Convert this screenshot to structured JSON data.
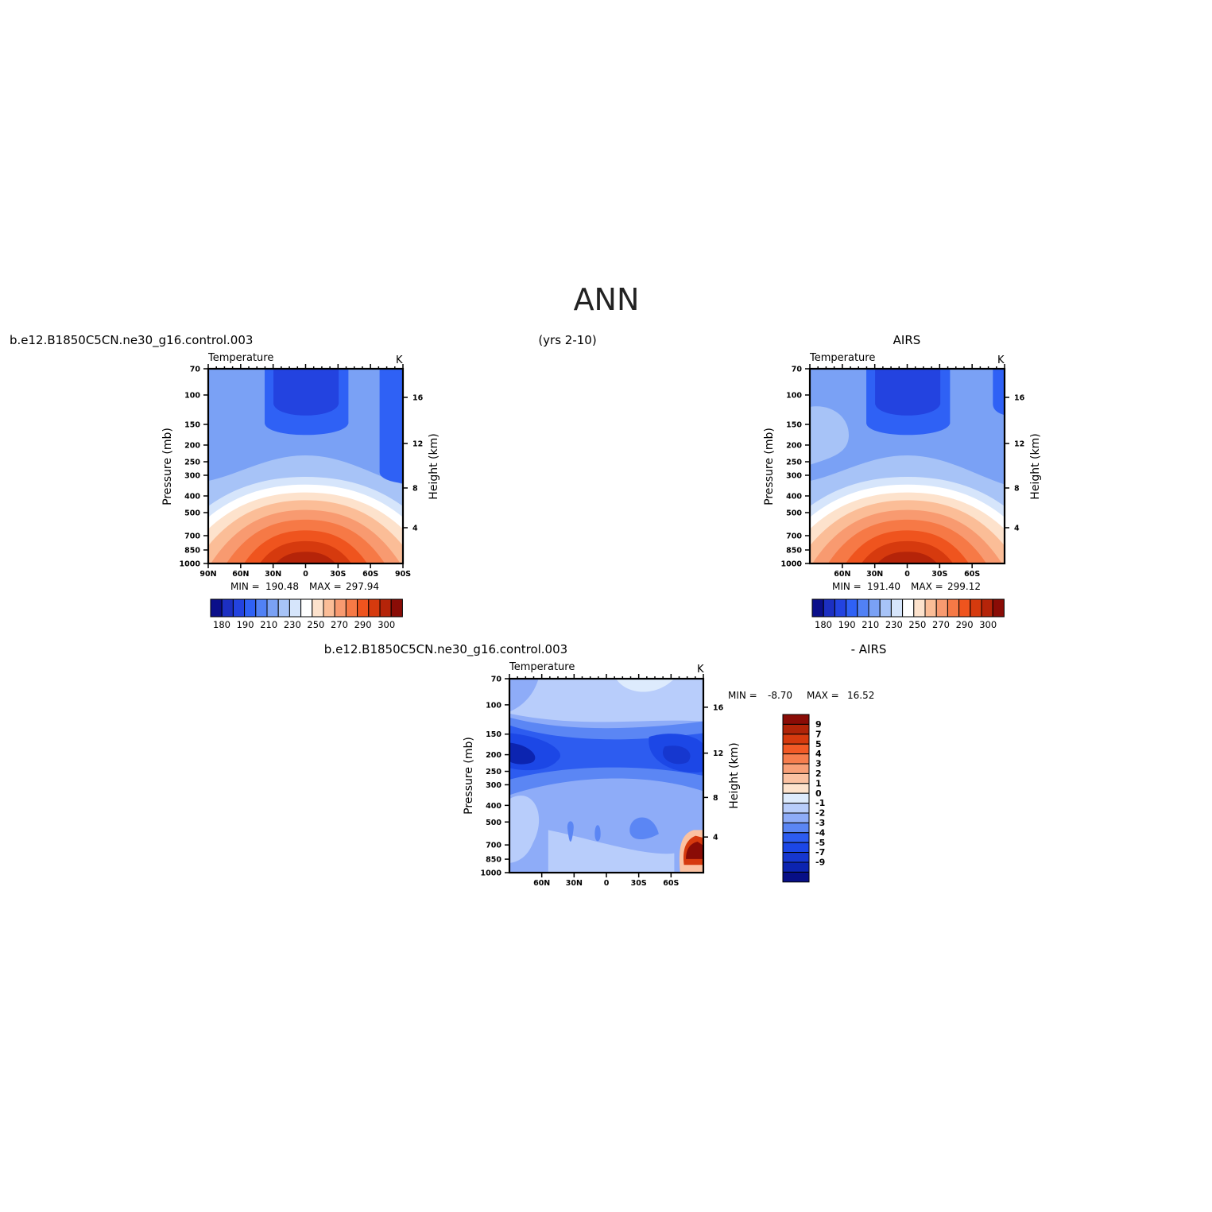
{
  "page": {
    "title": "ANN",
    "panel1_case": "b.e12.B1850C5CN.ne30_g16.control.003",
    "years": "(yrs 2-10)",
    "panel2_obs": "AIRS",
    "panel3_case": "b.e12.B1850C5CN.ne30_g16.control.003",
    "panel3_obs": "- AIRS"
  },
  "colors": {
    "abs_scale": [
      "#0b0f8a",
      "#1c2fc2",
      "#2343e0",
      "#2f61f5",
      "#5181f5",
      "#7aa1f5",
      "#a7c3f7",
      "#d6e5fb",
      "#ffffff",
      "#fde2cc",
      "#fbbd97",
      "#f89a70",
      "#f67946",
      "#ef541e",
      "#d63a0e",
      "#b52409",
      "#8a0c06"
    ],
    "diff_scale": [
      "#070f86",
      "#0c24b0",
      "#1637cf",
      "#1c47e6",
      "#2d5cf0",
      "#5b86f4",
      "#8eacf8",
      "#b8cdfb",
      "#ddebfd",
      "#ffffff",
      "#fde3cd",
      "#fbc2a2",
      "#f8a078",
      "#f67e4e",
      "#f25a26",
      "#d63a0e",
      "#b02408",
      "#8a0c06"
    ]
  },
  "chart_data": [
    {
      "type": "contour",
      "label": "b.e12.B1850C5CN.ne30_g16.control.003 (yrs 2-10)",
      "left_title": "Temperature",
      "units": "K",
      "ylabel": "Pressure (mb)",
      "ylabel_right": "Height (km)",
      "x_ticks": [
        "90N",
        "60N",
        "30N",
        "0",
        "30S",
        "60S",
        "90S"
      ],
      "y_ticks": [
        "70",
        "100",
        "150",
        "200",
        "250",
        "300",
        "400",
        "500",
        "700",
        "850",
        "1000"
      ],
      "y_ticks_right": [
        "16",
        "12",
        "8",
        "4"
      ],
      "stats": {
        "min_label": "MIN =",
        "min": "190.48",
        "max_label": "MAX =",
        "max": "297.94"
      },
      "colorbar_labels": [
        "180",
        "190",
        "210",
        "230",
        "250",
        "270",
        "290",
        "300"
      ],
      "x": [
        90,
        60,
        30,
        0,
        -30,
        -60,
        -90
      ],
      "levels_mb": [
        70,
        100,
        150,
        200,
        250,
        300,
        400,
        500,
        700,
        850,
        1000
      ],
      "values_approx_K": [
        [
          215,
          210,
          205,
          196,
          205,
          210,
          200
        ],
        [
          213,
          210,
          205,
          195,
          205,
          210,
          205
        ],
        [
          213,
          212,
          210,
          205,
          210,
          212,
          207
        ],
        [
          215,
          215,
          215,
          212,
          215,
          213,
          208
        ],
        [
          218,
          220,
          222,
          222,
          222,
          218,
          212
        ],
        [
          222,
          228,
          232,
          235,
          232,
          225,
          215
        ],
        [
          232,
          242,
          252,
          255,
          250,
          238,
          225
        ],
        [
          245,
          255,
          263,
          266,
          262,
          250,
          235
        ],
        [
          255,
          268,
          280,
          282,
          280,
          266,
          252
        ],
        [
          260,
          275,
          287,
          292,
          287,
          275,
          258
        ],
        [
          262,
          280,
          293,
          298,
          293,
          280,
          262
        ]
      ]
    },
    {
      "type": "contour",
      "label": "AIRS",
      "left_title": "Temperature",
      "units": "K",
      "ylabel": "Pressure (mb)",
      "ylabel_right": "Height (km)",
      "x_ticks": [
        "60N",
        "30N",
        "0",
        "30S",
        "60S"
      ],
      "y_ticks": [
        "70",
        "100",
        "150",
        "200",
        "250",
        "300",
        "400",
        "500",
        "700",
        "850",
        "1000"
      ],
      "y_ticks_right": [
        "16",
        "12",
        "8",
        "4"
      ],
      "stats": {
        "min_label": "MIN =",
        "min": "191.40",
        "max_label": "MAX =",
        "max": "299.12"
      },
      "colorbar_labels": [
        "180",
        "190",
        "210",
        "230",
        "250",
        "270",
        "290",
        "300"
      ]
    },
    {
      "type": "contour",
      "label": "b.e12.B1850C5CN.ne30_g16.control.003 - AIRS",
      "left_title": "Temperature",
      "units": "K",
      "ylabel": "Pressure (mb)",
      "ylabel_right": "Height (km)",
      "x_ticks": [
        "60N",
        "30N",
        "0",
        "30S",
        "60S"
      ],
      "y_ticks": [
        "70",
        "100",
        "150",
        "200",
        "250",
        "300",
        "400",
        "500",
        "700",
        "850",
        "1000"
      ],
      "y_ticks_right": [
        "16",
        "12",
        "8",
        "4"
      ],
      "stats": {
        "min_label": "MIN =",
        "min": "-8.70",
        "max_label": "MAX =",
        "max": "16.52"
      },
      "colorbar_labels": [
        "9",
        "7",
        "5",
        "4",
        "3",
        "2",
        "1",
        "0",
        "-1",
        "-2",
        "-3",
        "-4",
        "-5",
        "-7",
        "-9"
      ]
    }
  ]
}
